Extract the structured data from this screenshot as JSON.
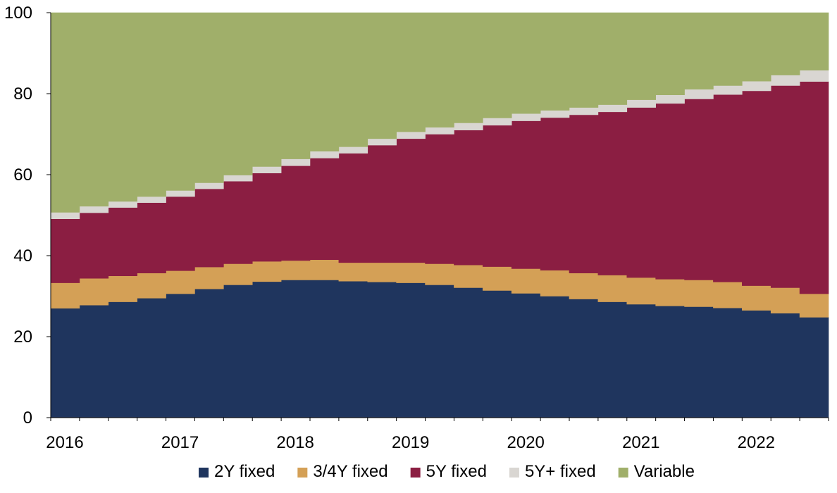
{
  "chart_data": {
    "type": "area",
    "stacked": true,
    "step": true,
    "x": [
      "2016Q1",
      "2016Q2",
      "2016Q3",
      "2016Q4",
      "2017Q1",
      "2017Q2",
      "2017Q3",
      "2017Q4",
      "2018Q1",
      "2018Q2",
      "2018Q3",
      "2018Q4",
      "2019Q1",
      "2019Q2",
      "2019Q3",
      "2019Q4",
      "2020Q1",
      "2020Q2",
      "2020Q3",
      "2020Q4",
      "2021Q1",
      "2021Q2",
      "2021Q3",
      "2021Q4",
      "2022Q1",
      "2022Q2",
      "2022Q3"
    ],
    "x_tick_labels": [
      "2016",
      "2017",
      "2018",
      "2019",
      "2020",
      "2021",
      "2022"
    ],
    "y_ticks": [
      0,
      20,
      40,
      60,
      80,
      100
    ],
    "ylim": [
      0,
      100
    ],
    "grid": false,
    "legend_position": "bottom",
    "series": [
      {
        "name": "2Y fixed",
        "color": "#1f355e",
        "values": [
          27.0,
          27.8,
          28.6,
          29.5,
          30.6,
          31.8,
          32.8,
          33.6,
          34.0,
          34.0,
          33.7,
          33.5,
          33.3,
          32.8,
          32.1,
          31.4,
          30.7,
          30.0,
          29.3,
          28.6,
          28.0,
          27.6,
          27.4,
          27.1,
          26.5,
          25.8,
          24.8
        ]
      },
      {
        "name": "3/4Y fixed",
        "color": "#d4a056",
        "values": [
          6.3,
          6.6,
          6.4,
          6.2,
          5.7,
          5.4,
          5.2,
          5.0,
          4.8,
          5.0,
          4.6,
          4.8,
          5.0,
          5.2,
          5.6,
          5.9,
          6.1,
          6.4,
          6.4,
          6.6,
          6.6,
          6.6,
          6.6,
          6.4,
          6.1,
          6.3,
          5.8
        ]
      },
      {
        "name": "5Y fixed",
        "color": "#8b1e42",
        "values": [
          15.8,
          16.2,
          16.9,
          17.4,
          18.3,
          19.3,
          20.4,
          21.8,
          23.4,
          25.1,
          27.0,
          29.0,
          30.6,
          32.0,
          33.3,
          34.9,
          36.5,
          37.7,
          39.1,
          40.3,
          42.0,
          43.4,
          44.7,
          46.3,
          48.1,
          49.9,
          52.4
        ]
      },
      {
        "name": "5Y+ fixed",
        "color": "#d9d6d2",
        "values": [
          1.6,
          1.6,
          1.5,
          1.5,
          1.5,
          1.5,
          1.5,
          1.6,
          1.7,
          1.7,
          1.6,
          1.6,
          1.7,
          1.7,
          1.8,
          1.8,
          1.8,
          1.8,
          1.8,
          1.8,
          1.9,
          2.1,
          2.4,
          2.2,
          2.4,
          2.6,
          2.8
        ]
      },
      {
        "name": "Variable",
        "color": "#a0af6a",
        "values": [
          49.3,
          47.8,
          46.6,
          45.4,
          43.9,
          42.0,
          40.1,
          38.0,
          36.1,
          34.2,
          33.1,
          31.1,
          29.4,
          28.3,
          27.2,
          26.0,
          24.9,
          24.1,
          23.4,
          22.7,
          21.5,
          20.3,
          18.9,
          18.0,
          16.9,
          15.4,
          14.2
        ]
      }
    ]
  }
}
